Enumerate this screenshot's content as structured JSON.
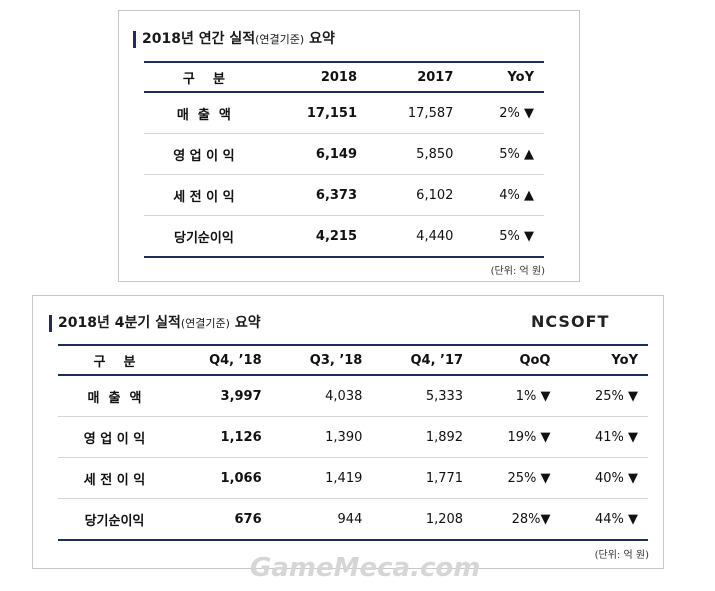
{
  "annual": {
    "title": {
      "main": "2018년 연간 실적",
      "note": "(연결기준)",
      "tail": "요약"
    },
    "headers": [
      "구    분",
      "2018",
      "2017",
      "YoY"
    ],
    "rows": [
      [
        "매  출  액",
        "17,151",
        "17,587",
        "2% ▼"
      ],
      [
        "영 업 이 익",
        "6,149",
        "5,850",
        "5% ▲"
      ],
      [
        "세 전 이 익",
        "6,373",
        "6,102",
        "4% ▲"
      ],
      [
        "당기순이익",
        "4,215",
        "4,440",
        "5% ▼"
      ]
    ],
    "unit": "(단위: 억 원)"
  },
  "quarterly": {
    "title": {
      "main": "2018년 4분기 실적",
      "note": "(연결기준)",
      "tail": "요약"
    },
    "logo": "NCSOFT",
    "headers": [
      "구    분",
      "Q4, ’18",
      "Q3, ’18",
      "Q4, ’17",
      "QoQ",
      "YoY"
    ],
    "rows": [
      [
        "매  출  액",
        "3,997",
        "4,038",
        "5,333",
        "1% ▼",
        "25% ▼"
      ],
      [
        "영 업 이 익",
        "1,126",
        "1,390",
        "1,892",
        "19% ▼",
        "41% ▼"
      ],
      [
        "세 전 이 익",
        "1,066",
        "1,419",
        "1,771",
        "25% ▼",
        "40% ▼"
      ],
      [
        "당기순이익",
        "676",
        "944",
        "1,208",
        "28%▼",
        "44% ▼"
      ]
    ],
    "unit": "(단위: 억 원)"
  },
  "watermark": "GameMeca.com"
}
